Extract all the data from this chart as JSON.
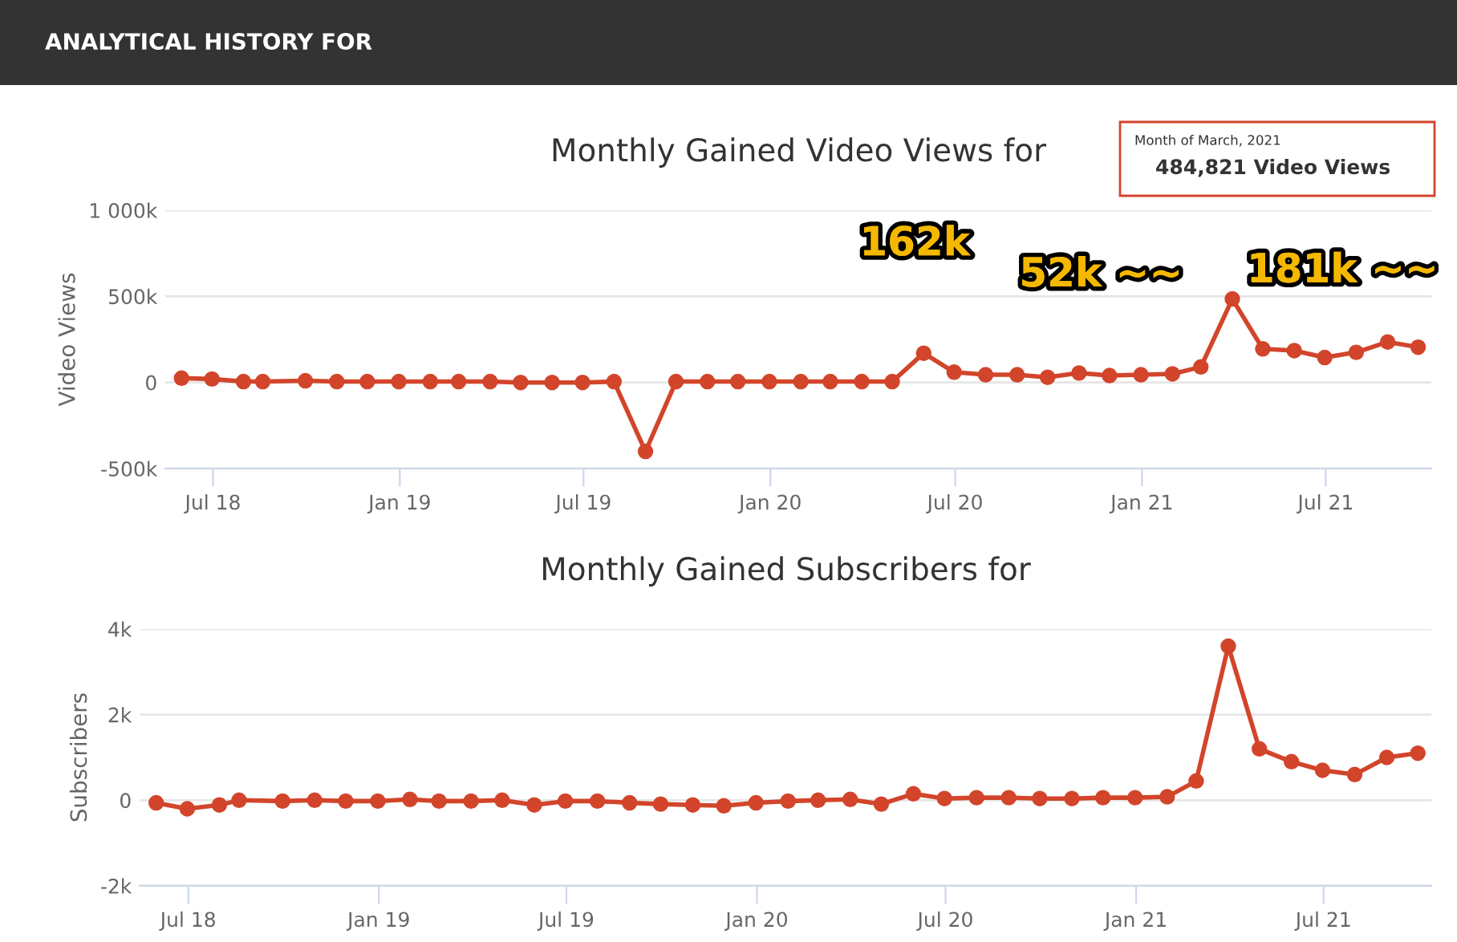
{
  "chart_data": [
    {
      "type": "line",
      "title": "Monthly Gained Video Views for",
      "ylabel": "Video Views",
      "annotations": [
        "ANALYTICAL HISTORY FOR",
        "Month of March, 2021",
        "484,821 Video Views",
        {
          "text": "162k",
          "x": "2020-05-31",
          "y": 172000
        },
        {
          "text": "52k ~~",
          "x": "2020-09-30",
          "y": 43000
        },
        {
          "text": "181k ~~",
          "x": "2021-06-30",
          "y": 145000
        }
      ],
      "x": [
        "2018-05-31",
        "2018-06-30",
        "2018-07-31",
        "2018-08-19",
        "2018-09-30",
        "2018-10-31",
        "2018-11-30",
        "2018-12-31",
        "2019-01-31",
        "2019-02-28",
        "2019-03-31",
        "2019-04-30",
        "2019-05-31",
        "2019-06-30",
        "2019-07-31",
        "2019-08-31",
        "2019-09-30",
        "2019-10-31",
        "2019-11-30",
        "2019-12-31",
        "2020-01-31",
        "2020-02-29",
        "2020-03-31",
        "2020-04-30",
        "2020-05-31",
        "2020-06-30",
        "2020-07-31",
        "2020-08-31",
        "2020-09-30",
        "2020-10-31",
        "2020-11-30",
        "2020-12-31",
        "2021-01-31",
        "2021-02-28",
        "2021-03-31",
        "2021-04-30",
        "2021-05-31",
        "2021-06-30",
        "2021-07-31",
        "2021-08-31",
        "2021-09-30"
      ],
      "series": [
        {
          "color": "#d2452b",
          "values": [
            25000,
            20000,
            5000,
            5000,
            10000,
            5000,
            5000,
            5000,
            5000,
            5000,
            5000,
            0,
            0,
            0,
            5000,
            -400000,
            5000,
            5000,
            5000,
            5000,
            5000,
            5000,
            5000,
            5000,
            170000,
            60000,
            45000,
            45000,
            30000,
            55000,
            40000,
            45000,
            50000,
            90000,
            484821,
            195000,
            185000,
            145000,
            175000,
            235000,
            205000
          ]
        }
      ],
      "xlim": [
        "2018-05-15",
        "2021-10-13"
      ],
      "xticks": [
        {
          "value": "2018-07-01",
          "label": "Jul 18"
        },
        {
          "value": "2019-01-01",
          "label": "Jan 19"
        },
        {
          "value": "2019-07-01",
          "label": "Jul 19"
        },
        {
          "value": "2020-01-01",
          "label": "Jan 20"
        },
        {
          "value": "2020-07-01",
          "label": "Jul 20"
        },
        {
          "value": "2021-01-01",
          "label": "Jan 21"
        },
        {
          "value": "2021-07-01",
          "label": "Jul 21"
        }
      ],
      "ylim": [
        -500000,
        1000000
      ],
      "yticks": [
        {
          "value": -500000,
          "label": "-500k"
        },
        {
          "value": 0,
          "label": "0"
        },
        {
          "value": 500000,
          "label": "500k"
        },
        {
          "value": 1000000,
          "label": "1 000k"
        }
      ],
      "grid": "y",
      "marker": "circle",
      "line_style": "solid",
      "legend": false
    },
    {
      "type": "line",
      "title": "Monthly Gained Subscribers for",
      "ylabel": "Subscribers",
      "x": [
        "2018-05-31",
        "2018-06-30",
        "2018-07-31",
        "2018-08-19",
        "2018-09-30",
        "2018-10-31",
        "2018-11-30",
        "2018-12-31",
        "2019-01-31",
        "2019-02-28",
        "2019-03-31",
        "2019-04-30",
        "2019-05-31",
        "2019-06-30",
        "2019-07-31",
        "2019-08-31",
        "2019-09-30",
        "2019-10-31",
        "2019-11-30",
        "2019-12-31",
        "2020-01-31",
        "2020-02-29",
        "2020-03-31",
        "2020-04-30",
        "2020-05-31",
        "2020-06-30",
        "2020-07-31",
        "2020-08-31",
        "2020-09-30",
        "2020-10-31",
        "2020-11-30",
        "2020-12-31",
        "2021-01-31",
        "2021-02-28",
        "2021-03-31",
        "2021-04-30",
        "2021-05-31",
        "2021-06-30",
        "2021-07-31",
        "2021-08-31",
        "2021-09-30"
      ],
      "series": [
        {
          "color": "#d2452b",
          "values": [
            -60,
            -200,
            -110,
            0,
            -20,
            0,
            -20,
            -20,
            20,
            -20,
            -20,
            0,
            -110,
            -20,
            -20,
            -60,
            -90,
            -110,
            -130,
            -60,
            -20,
            0,
            20,
            -90,
            150,
            40,
            60,
            60,
            40,
            40,
            60,
            60,
            80,
            450,
            3600,
            1200,
            900,
            700,
            600,
            1000,
            1100
          ]
        }
      ],
      "xlim": [
        "2018-05-15",
        "2021-10-13"
      ],
      "xticks": [
        {
          "value": "2018-07-01",
          "label": "Jul 18"
        },
        {
          "value": "2019-01-01",
          "label": "Jan 19"
        },
        {
          "value": "2019-07-01",
          "label": "Jul 19"
        },
        {
          "value": "2020-01-01",
          "label": "Jan 20"
        },
        {
          "value": "2020-07-01",
          "label": "Jul 20"
        },
        {
          "value": "2021-01-01",
          "label": "Jan 21"
        },
        {
          "value": "2021-07-01",
          "label": "Jul 21"
        }
      ],
      "ylim": [
        -2000,
        4000
      ],
      "yticks": [
        {
          "value": -2000,
          "label": "-2k"
        },
        {
          "value": 0,
          "label": "0"
        },
        {
          "value": 2000,
          "label": "2k"
        },
        {
          "value": 4000,
          "label": "4k"
        }
      ],
      "grid": "y",
      "marker": "circle",
      "line_style": "solid",
      "legend": false
    }
  ]
}
